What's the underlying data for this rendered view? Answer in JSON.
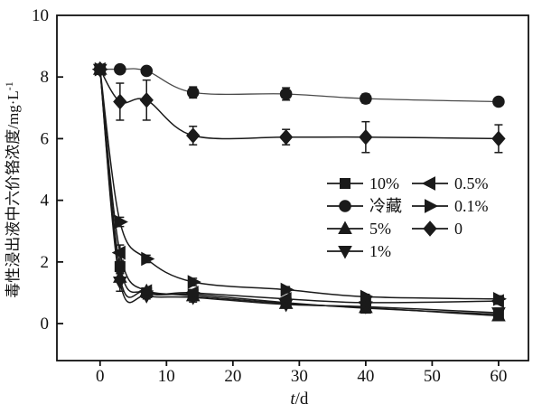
{
  "figure": {
    "background": "#ffffff"
  },
  "chart_data": {
    "type": "line",
    "title": "",
    "xlabel": {
      "variable": "t",
      "unit": "/d"
    },
    "ylabel": {
      "text": "毒性浸出液中六价铬浓度/mg·L",
      "superscript": "-1"
    },
    "xlim": [
      -6.5,
      64.5
    ],
    "ylim": [
      -1.2,
      10
    ],
    "x_ticks": [
      0,
      10,
      20,
      30,
      40,
      50,
      60
    ],
    "y_ticks": [
      0,
      2,
      4,
      6,
      8,
      10
    ],
    "grid": false,
    "box": true,
    "x": [
      0,
      3,
      7,
      14,
      28,
      40,
      60
    ],
    "series": [
      {
        "name": "10%",
        "marker": "square",
        "color": "#1a1a1a",
        "values": [
          8.25,
          1.85,
          1.0,
          0.95,
          0.68,
          0.5,
          0.3
        ],
        "errors": [
          0.1,
          0.15,
          0,
          0.12,
          0,
          0,
          0
        ]
      },
      {
        "name": "冷藏",
        "marker": "circle",
        "color": "#4a4a4a",
        "values": [
          8.25,
          8.25,
          8.2,
          7.5,
          7.45,
          7.3,
          7.2
        ],
        "errors": [
          0.12,
          0.1,
          0.08,
          0.18,
          0.2,
          0.15,
          0.12
        ]
      },
      {
        "name": "5%",
        "marker": "triangle-up",
        "color": "#1a1a1a",
        "values": [
          8.25,
          1.5,
          1.05,
          0.9,
          0.65,
          0.52,
          0.25
        ],
        "errors": [
          0.1,
          0.12,
          0,
          0,
          0,
          0,
          0
        ]
      },
      {
        "name": "1%",
        "marker": "triangle-down",
        "color": "#1a1a1a",
        "values": [
          8.25,
          1.35,
          0.9,
          0.85,
          0.62,
          0.55,
          0.35
        ],
        "errors": [
          0.1,
          0.3,
          0.1,
          0.15,
          0,
          0,
          0.15
        ]
      },
      {
        "name": "0.5%",
        "marker": "triangle-left",
        "color": "#1a1a1a",
        "values": [
          8.25,
          2.3,
          1.05,
          1.0,
          0.8,
          0.68,
          0.73
        ],
        "errors": [
          0.1,
          0.25,
          0,
          0,
          0,
          0,
          0.1
        ]
      },
      {
        "name": "0.1%",
        "marker": "triangle-right",
        "color": "#1a1a1a",
        "values": [
          8.25,
          3.3,
          2.1,
          1.35,
          1.1,
          0.87,
          0.8
        ],
        "errors": [
          0.1,
          0.15,
          0.12,
          0.12,
          0.1,
          0.08,
          0.1
        ]
      },
      {
        "name": "0",
        "marker": "diamond",
        "color": "#1a1a1a",
        "values": [
          8.25,
          7.2,
          7.25,
          6.1,
          6.05,
          6.05,
          6.0
        ],
        "errors": [
          0.12,
          0.6,
          0.65,
          0.3,
          0.25,
          0.5,
          0.45
        ]
      }
    ],
    "legend": {
      "position": "inside-right",
      "border": false,
      "columns": [
        [
          "10%",
          "冷藏",
          "5%",
          "1%"
        ],
        [
          "0.5%",
          "0.1%",
          "0"
        ]
      ]
    },
    "colors": {
      "ink": "#1a1a1a",
      "axis": "#111111",
      "background": "#ffffff"
    }
  }
}
